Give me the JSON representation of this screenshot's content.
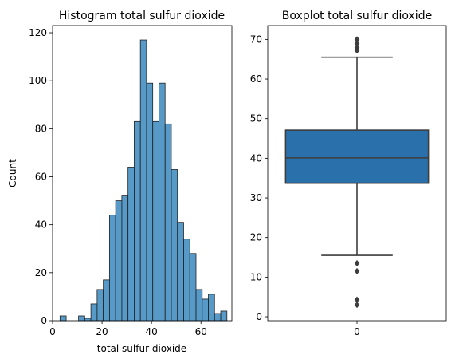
{
  "chart_data": [
    {
      "type": "bar",
      "title": "Histogram total sulfur dioxide",
      "xlabel": "total sulfur dioxide",
      "ylabel": "Count",
      "xlim": [
        0,
        72.5
      ],
      "ylim": [
        0,
        123
      ],
      "xticks": [
        "0",
        "20",
        "40",
        "60"
      ],
      "yticks": [
        "0",
        "20",
        "40",
        "60",
        "80",
        "100",
        "120"
      ],
      "bin_width": 2.5,
      "bins": [
        {
          "x": 3.0,
          "count": 2
        },
        {
          "x": 10.5,
          "count": 2
        },
        {
          "x": 13.0,
          "count": 1
        },
        {
          "x": 15.5,
          "count": 7
        },
        {
          "x": 18.0,
          "count": 13
        },
        {
          "x": 20.5,
          "count": 17
        },
        {
          "x": 23.0,
          "count": 44
        },
        {
          "x": 25.5,
          "count": 50
        },
        {
          "x": 28.0,
          "count": 52
        },
        {
          "x": 30.5,
          "count": 64
        },
        {
          "x": 33.0,
          "count": 83
        },
        {
          "x": 35.5,
          "count": 117
        },
        {
          "x": 38.0,
          "count": 99
        },
        {
          "x": 40.5,
          "count": 83
        },
        {
          "x": 43.0,
          "count": 99
        },
        {
          "x": 45.5,
          "count": 82
        },
        {
          "x": 48.0,
          "count": 63
        },
        {
          "x": 50.5,
          "count": 41
        },
        {
          "x": 53.0,
          "count": 34
        },
        {
          "x": 55.5,
          "count": 28
        },
        {
          "x": 58.0,
          "count": 13
        },
        {
          "x": 60.5,
          "count": 9
        },
        {
          "x": 63.0,
          "count": 11
        },
        {
          "x": 65.5,
          "count": 3
        },
        {
          "x": 68.0,
          "count": 4
        }
      ],
      "bar_color": "#1f77b4"
    },
    {
      "type": "boxplot",
      "title": "Boxplot total sulfur dioxide",
      "xlabel": "",
      "ylabel": "",
      "ylim": [
        -1,
        73.5
      ],
      "xticks": [
        "0"
      ],
      "yticks": [
        "0",
        "10",
        "20",
        "30",
        "40",
        "50",
        "60",
        "70"
      ],
      "category": "0",
      "whisker_low": 15.5,
      "q1": 33.7,
      "median": 40.1,
      "q3": 47.1,
      "whisker_high": 65.5,
      "outliers": [
        70.0,
        69.0,
        68.0,
        67.2,
        13.5,
        11.5,
        4.3,
        3.0
      ],
      "box_color": "#2a70aa"
    }
  ]
}
